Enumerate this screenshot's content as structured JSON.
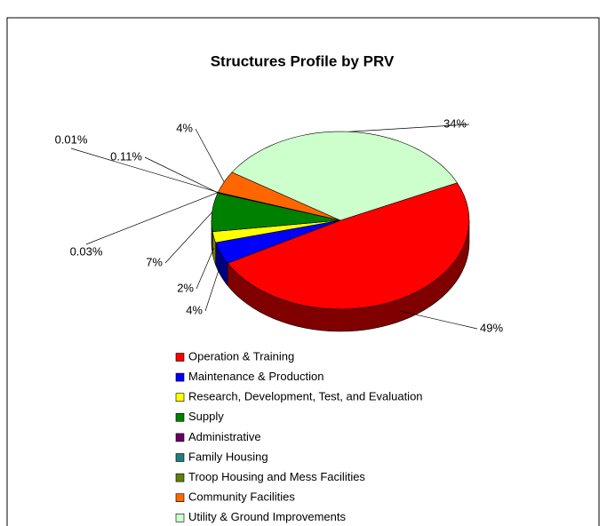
{
  "chart_data": {
    "type": "pie3d",
    "title": "Structures Profile by PRV",
    "categories": [
      "Operation & Training",
      "Maintenance & Production",
      "Research, Development, Test, and Evaluation",
      "Supply",
      "Administrative",
      "Family Housing",
      "Troop Housing and Mess Facilities",
      "Community Facilities",
      "Utility & Ground Improvements"
    ],
    "values": [
      49,
      4,
      2,
      7,
      0.11,
      0.03,
      0.01,
      4,
      34
    ],
    "value_labels": [
      "49%",
      "4%",
      "2%",
      "7%",
      "0.11%",
      "0.03%",
      "0.01%",
      "4%",
      "34%"
    ],
    "colors": [
      "#ff0000",
      "#0000ff",
      "#ffff00",
      "#008000",
      "#660066",
      "#1f7f7f",
      "#5f7f0f",
      "#ff6600",
      "#ccffcc"
    ],
    "legend": "bottom"
  }
}
